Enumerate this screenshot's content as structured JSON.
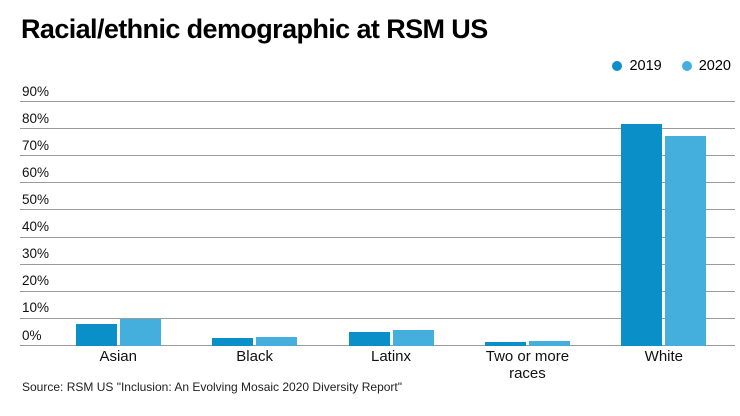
{
  "title": "Racial/ethnic demographic at RSM US",
  "legend": [
    {
      "label": "2019",
      "color": "#0a8fc9"
    },
    {
      "label": "2020",
      "color": "#44afdc"
    }
  ],
  "source": "Source: RSM US \"Inclusion: An Evolving Mosaic 2020 Diversity Report\"",
  "chart_data": {
    "type": "bar",
    "title": "Racial/ethnic demographic at RSM US",
    "categories": [
      "Asian",
      "Black",
      "Latinx",
      "Two or more races",
      "White"
    ],
    "series": [
      {
        "name": "2019",
        "color": "#0a8fc9",
        "values": [
          8,
          3,
          5,
          1.5,
          82
        ]
      },
      {
        "name": "2020",
        "color": "#44afdc",
        "values": [
          10,
          3.5,
          6,
          2,
          77.5
        ]
      }
    ],
    "xlabel": "",
    "ylabel": "",
    "ylim": [
      0,
      90
    ],
    "yticks": [
      0,
      10,
      20,
      30,
      40,
      50,
      60,
      70,
      80,
      90
    ],
    "ytick_suffix": "%",
    "grid": true,
    "gridline_color": "#9b9b9b",
    "legend_position": "top-right",
    "background": "#ffffff"
  }
}
